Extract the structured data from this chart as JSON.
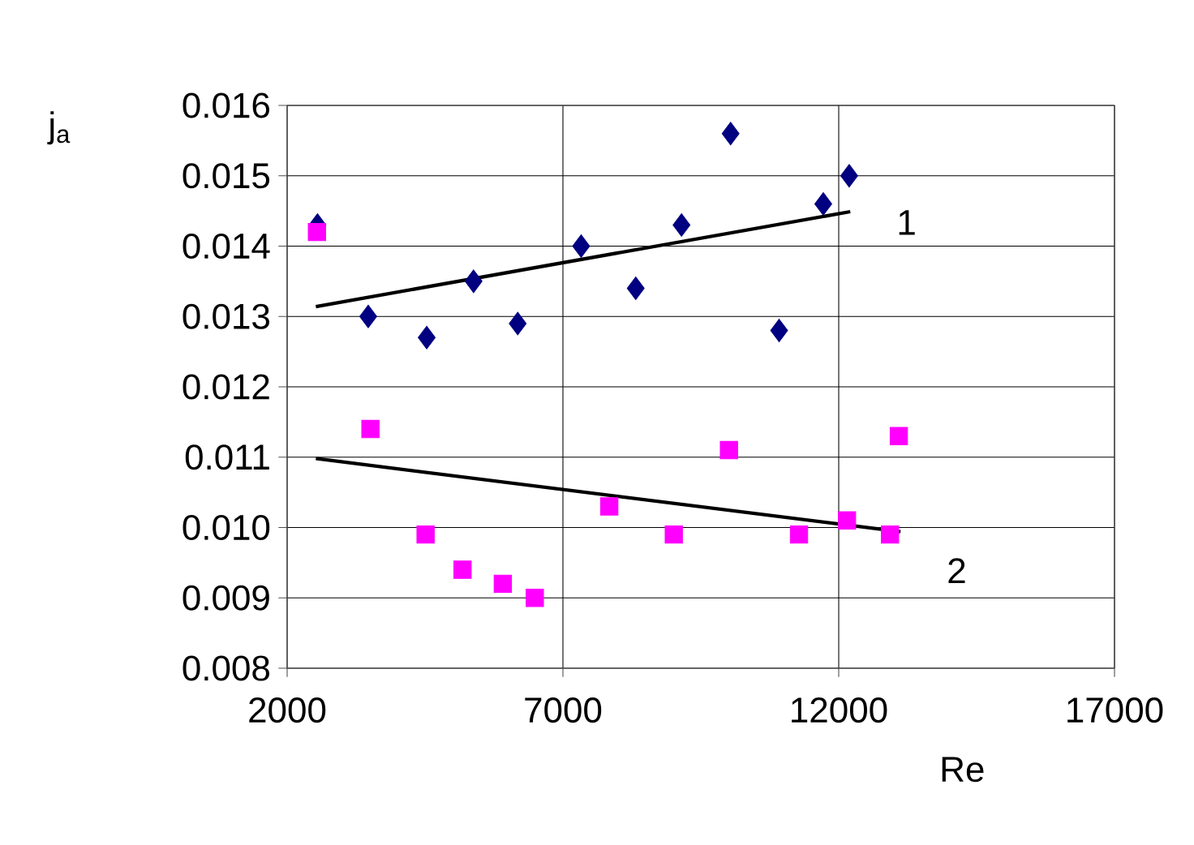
{
  "chart_data": {
    "type": "scatter",
    "xlabel": "Re",
    "ylabel": "j$_{a}$",
    "xlim": [
      2000,
      17000
    ],
    "xticks": [
      2000,
      7000,
      12000,
      17000
    ],
    "ylim": [
      0.008,
      0.016
    ],
    "yticks": [
      0.008,
      0.009,
      {
        "value": 0.01,
        "label": "0.010"
      },
      0.011,
      0.012,
      0.013,
      0.014,
      0.015,
      0.016
    ],
    "grid": true,
    "series": [
      {
        "marker": "diamond",
        "color": "#000080",
        "x": [
          2550,
          3470,
          4530,
          5380,
          6180,
          7330,
          8320,
          9150,
          10040,
          10920,
          11720,
          12190
        ],
        "values": [
          0.0143,
          0.013,
          0.0127,
          0.0135,
          0.0129,
          0.014,
          0.0134,
          0.0143,
          0.0156,
          0.0128,
          0.0146,
          0.015
        ]
      },
      {
        "marker": "square",
        "color": "#ff00ff",
        "x": [
          2540,
          3510,
          4510,
          5180,
          5910,
          6490,
          7840,
          9010,
          10010,
          11280,
          12150,
          12930,
          13090
        ],
        "values": [
          0.0142,
          0.0114,
          0.0099,
          0.0094,
          0.0092,
          0.009,
          0.0103,
          0.0099,
          0.0111,
          0.0099,
          0.0101,
          0.0099,
          0.0113
        ]
      },
      {
        "type": "line",
        "name": "1",
        "line_style": "solid",
        "color": "#000000",
        "x": [
          2520,
          12210
        ],
        "values": [
          0.01314,
          0.01449
        ]
      },
      {
        "type": "line",
        "name": "2",
        "line_style": "solid",
        "color": "#000000",
        "x": [
          2520,
          13120
        ],
        "values": [
          0.01098,
          0.00994
        ]
      }
    ]
  }
}
